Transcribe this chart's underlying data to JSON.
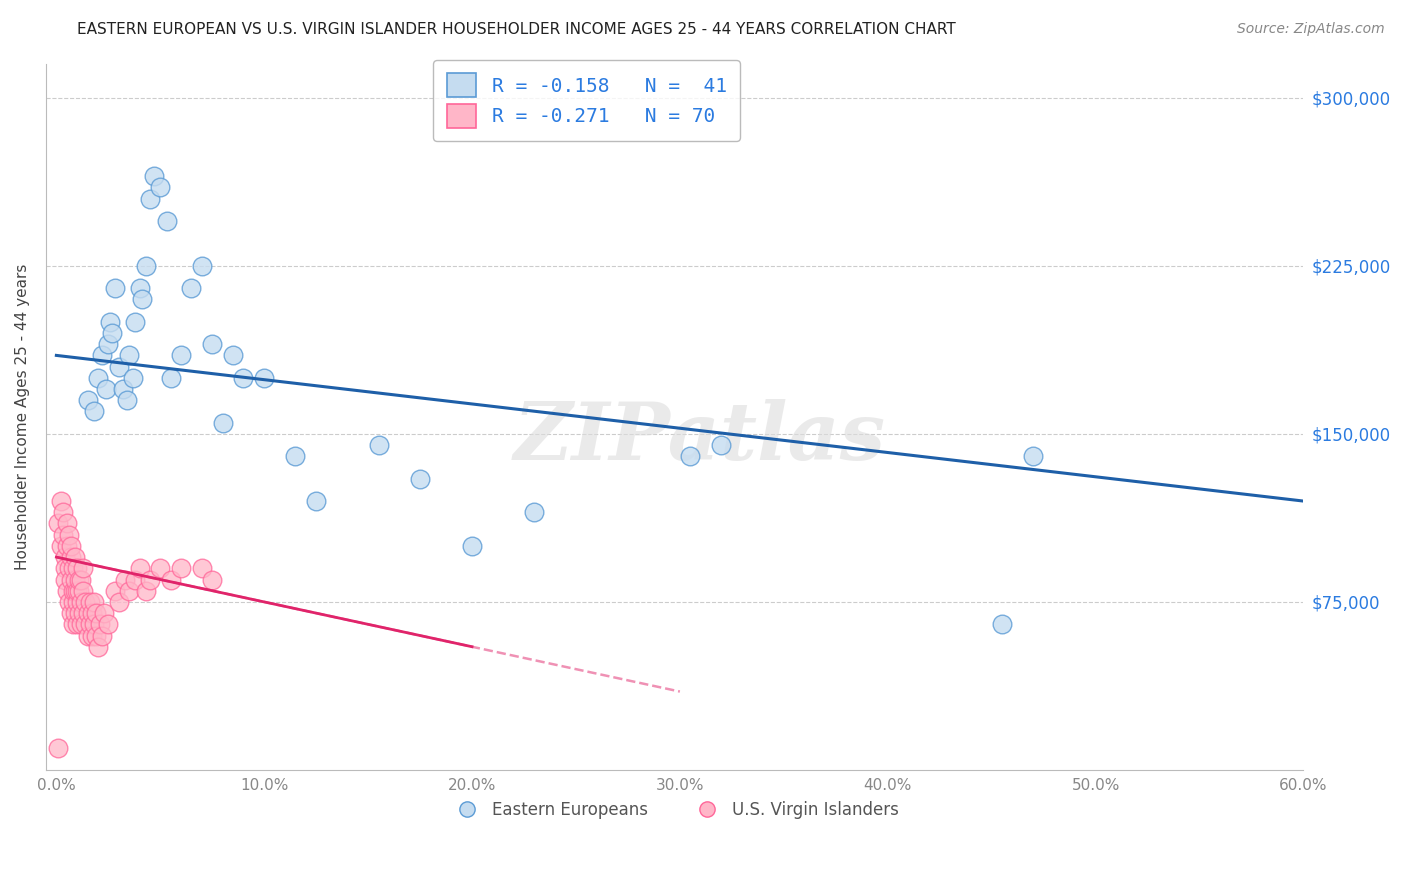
{
  "title": "EASTERN EUROPEAN VS U.S. VIRGIN ISLANDER HOUSEHOLDER INCOME AGES 25 - 44 YEARS CORRELATION CHART",
  "source": "Source: ZipAtlas.com",
  "ylabel": "Householder Income Ages 25 - 44 years",
  "xlim_min": -0.005,
  "xlim_max": 0.6,
  "ylim_min": 0,
  "ylim_max": 315000,
  "xticks": [
    0.0,
    0.1,
    0.2,
    0.3,
    0.4,
    0.5,
    0.6
  ],
  "xtick_labels": [
    "0.0%",
    "10.0%",
    "20.0%",
    "30.0%",
    "40.0%",
    "50.0%",
    "60.0%"
  ],
  "yticks": [
    0,
    75000,
    150000,
    225000,
    300000
  ],
  "ytick_labels": [
    "",
    "$75,000",
    "$150,000",
    "$225,000",
    "$300,000"
  ],
  "blue_face": "#C5DCF0",
  "blue_edge": "#5B9BD5",
  "pink_face": "#FFB6C8",
  "pink_edge": "#FF6699",
  "trend_blue_color": "#1E5FA8",
  "trend_pink_color": "#E0246A",
  "grid_color": "#CCCCCC",
  "background": "#FFFFFF",
  "title_color": "#222222",
  "source_color": "#888888",
  "axis_color": "#888888",
  "legend_text_color": "#2B7BE0",
  "watermark": "ZIPatlas",
  "watermark_color": "#DDDDDD",
  "legend_line1": "R = -0.158   N =  41",
  "legend_line2": "R = -0.271   N = 70",
  "series1_label": "Eastern Europeans",
  "series2_label": "U.S. Virgin Islanders",
  "blue_x": [
    0.015,
    0.018,
    0.02,
    0.022,
    0.024,
    0.025,
    0.026,
    0.027,
    0.028,
    0.03,
    0.032,
    0.034,
    0.035,
    0.037,
    0.038,
    0.04,
    0.041,
    0.043,
    0.045,
    0.047,
    0.05,
    0.053,
    0.055,
    0.06,
    0.065,
    0.07,
    0.075,
    0.08,
    0.085,
    0.09,
    0.1,
    0.115,
    0.125,
    0.155,
    0.175,
    0.2,
    0.23,
    0.305,
    0.32,
    0.455,
    0.47
  ],
  "blue_y": [
    165000,
    160000,
    175000,
    185000,
    170000,
    190000,
    200000,
    195000,
    215000,
    180000,
    170000,
    165000,
    185000,
    175000,
    200000,
    215000,
    210000,
    225000,
    255000,
    265000,
    260000,
    245000,
    175000,
    185000,
    215000,
    225000,
    190000,
    155000,
    185000,
    175000,
    175000,
    140000,
    120000,
    145000,
    130000,
    100000,
    115000,
    140000,
    145000,
    65000,
    140000
  ],
  "pink_x": [
    0.001,
    0.002,
    0.002,
    0.003,
    0.003,
    0.004,
    0.004,
    0.004,
    0.005,
    0.005,
    0.005,
    0.006,
    0.006,
    0.006,
    0.007,
    0.007,
    0.007,
    0.007,
    0.008,
    0.008,
    0.008,
    0.008,
    0.009,
    0.009,
    0.009,
    0.009,
    0.01,
    0.01,
    0.01,
    0.01,
    0.011,
    0.011,
    0.011,
    0.012,
    0.012,
    0.012,
    0.013,
    0.013,
    0.013,
    0.014,
    0.014,
    0.015,
    0.015,
    0.016,
    0.016,
    0.017,
    0.017,
    0.018,
    0.018,
    0.019,
    0.019,
    0.02,
    0.021,
    0.022,
    0.023,
    0.025,
    0.028,
    0.03,
    0.033,
    0.035,
    0.038,
    0.04,
    0.043,
    0.045,
    0.05,
    0.055,
    0.06,
    0.07,
    0.075,
    0.001
  ],
  "pink_y": [
    110000,
    100000,
    120000,
    115000,
    105000,
    95000,
    90000,
    85000,
    100000,
    110000,
    80000,
    75000,
    90000,
    105000,
    70000,
    85000,
    95000,
    100000,
    65000,
    75000,
    80000,
    90000,
    70000,
    80000,
    85000,
    95000,
    65000,
    75000,
    80000,
    90000,
    70000,
    80000,
    85000,
    65000,
    75000,
    85000,
    70000,
    80000,
    90000,
    65000,
    75000,
    60000,
    70000,
    65000,
    75000,
    60000,
    70000,
    65000,
    75000,
    60000,
    70000,
    55000,
    65000,
    60000,
    70000,
    65000,
    80000,
    75000,
    85000,
    80000,
    85000,
    90000,
    80000,
    85000,
    90000,
    85000,
    90000,
    90000,
    85000,
    10000
  ],
  "trend_blue_x0": 0.0,
  "trend_blue_x1": 0.6,
  "trend_blue_y0": 185000,
  "trend_blue_y1": 120000,
  "trend_pink_x0": 0.0,
  "trend_pink_x1": 0.2,
  "trend_pink_y0": 95000,
  "trend_pink_y1": 55000
}
